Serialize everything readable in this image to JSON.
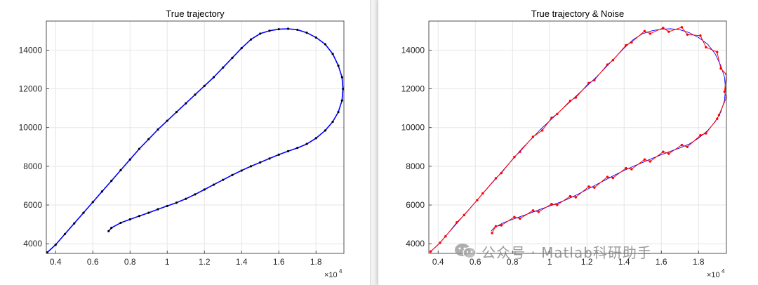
{
  "chart_data": [
    {
      "type": "line",
      "title": "True trajectory",
      "xlabel": "",
      "ylabel": "",
      "x_exponent_label": "×10",
      "x_exponent_power": "4",
      "xlim": [
        0.35,
        1.95
      ],
      "ylim": [
        3500,
        15500
      ],
      "xticks": [
        "0.4",
        "0.6",
        "0.8",
        "1",
        "1.2",
        "1.4",
        "1.6",
        "1.8"
      ],
      "yticks": [
        "4000",
        "6000",
        "8000",
        "10000",
        "12000",
        "14000"
      ],
      "grid": true,
      "colors": {
        "line": "#0000ff",
        "markers": "#000000"
      },
      "series": [
        {
          "style": "blue line with black dot markers",
          "points": [
            [
              0.355,
              3550
            ],
            [
              0.4,
              3950
            ],
            [
              0.45,
              4500
            ],
            [
              0.5,
              5050
            ],
            [
              0.55,
              5600
            ],
            [
              0.6,
              6150
            ],
            [
              0.65,
              6700
            ],
            [
              0.7,
              7250
            ],
            [
              0.75,
              7800
            ],
            [
              0.8,
              8350
            ],
            [
              0.85,
              8900
            ],
            [
              0.9,
              9400
            ],
            [
              0.95,
              9900
            ],
            [
              1.0,
              10350
            ],
            [
              1.05,
              10800
            ],
            [
              1.1,
              11250
            ],
            [
              1.15,
              11700
            ],
            [
              1.2,
              12150
            ],
            [
              1.25,
              12600
            ],
            [
              1.3,
              13100
            ],
            [
              1.35,
              13600
            ],
            [
              1.4,
              14100
            ],
            [
              1.45,
              14550
            ],
            [
              1.5,
              14850
            ],
            [
              1.55,
              15000
            ],
            [
              1.6,
              15080
            ],
            [
              1.65,
              15100
            ],
            [
              1.7,
              15050
            ],
            [
              1.75,
              14900
            ],
            [
              1.8,
              14650
            ],
            [
              1.85,
              14300
            ],
            [
              1.89,
              13800
            ],
            [
              1.92,
              13200
            ],
            [
              1.94,
              12600
            ],
            [
              1.945,
              12000
            ],
            [
              1.94,
              11400
            ],
            [
              1.92,
              10800
            ],
            [
              1.89,
              10300
            ],
            [
              1.85,
              9850
            ],
            [
              1.8,
              9450
            ],
            [
              1.75,
              9150
            ],
            [
              1.7,
              8950
            ],
            [
              1.65,
              8780
            ],
            [
              1.6,
              8600
            ],
            [
              1.55,
              8400
            ],
            [
              1.5,
              8200
            ],
            [
              1.45,
              8000
            ],
            [
              1.4,
              7780
            ],
            [
              1.35,
              7550
            ],
            [
              1.3,
              7300
            ],
            [
              1.25,
              7050
            ],
            [
              1.2,
              6800
            ],
            [
              1.15,
              6550
            ],
            [
              1.1,
              6320
            ],
            [
              1.05,
              6120
            ],
            [
              1.0,
              5950
            ],
            [
              0.95,
              5780
            ],
            [
              0.9,
              5600
            ],
            [
              0.85,
              5430
            ],
            [
              0.8,
              5260
            ],
            [
              0.75,
              5080
            ],
            [
              0.7,
              4820
            ],
            [
              0.685,
              4650
            ]
          ]
        }
      ]
    },
    {
      "type": "line",
      "title": "True trajectory & Noise",
      "xlabel": "",
      "ylabel": "",
      "x_exponent_label": "×10",
      "x_exponent_power": "4",
      "xlim": [
        0.35,
        1.95
      ],
      "ylim": [
        3500,
        15500
      ],
      "xticks": [
        "0.4",
        "0.6",
        "0.8",
        "1",
        "1.2",
        "1.4",
        "1.6",
        "1.8"
      ],
      "yticks": [
        "4000",
        "6000",
        "8000",
        "10000",
        "12000",
        "14000"
      ],
      "grid": true,
      "colors": {
        "true_line": "#0000ff",
        "noise": "#ff0000"
      },
      "series": [
        {
          "style": "blue thin line (true trajectory)",
          "points": [
            [
              0.355,
              3550
            ],
            [
              0.4,
              3950
            ],
            [
              0.45,
              4500
            ],
            [
              0.5,
              5050
            ],
            [
              0.55,
              5600
            ],
            [
              0.6,
              6150
            ],
            [
              0.65,
              6700
            ],
            [
              0.7,
              7250
            ],
            [
              0.75,
              7800
            ],
            [
              0.8,
              8350
            ],
            [
              0.85,
              8900
            ],
            [
              0.9,
              9400
            ],
            [
              0.95,
              9900
            ],
            [
              1.0,
              10350
            ],
            [
              1.05,
              10800
            ],
            [
              1.1,
              11250
            ],
            [
              1.15,
              11700
            ],
            [
              1.2,
              12150
            ],
            [
              1.25,
              12600
            ],
            [
              1.3,
              13100
            ],
            [
              1.35,
              13600
            ],
            [
              1.4,
              14100
            ],
            [
              1.45,
              14550
            ],
            [
              1.5,
              14850
            ],
            [
              1.55,
              15000
            ],
            [
              1.6,
              15080
            ],
            [
              1.65,
              15100
            ],
            [
              1.7,
              15050
            ],
            [
              1.75,
              14900
            ],
            [
              1.8,
              14650
            ],
            [
              1.85,
              14300
            ],
            [
              1.89,
              13800
            ],
            [
              1.92,
              13200
            ],
            [
              1.94,
              12600
            ],
            [
              1.945,
              12000
            ],
            [
              1.94,
              11400
            ],
            [
              1.92,
              10800
            ],
            [
              1.89,
              10300
            ],
            [
              1.85,
              9850
            ],
            [
              1.8,
              9450
            ],
            [
              1.75,
              9150
            ],
            [
              1.7,
              8950
            ],
            [
              1.65,
              8780
            ],
            [
              1.6,
              8600
            ],
            [
              1.55,
              8400
            ],
            [
              1.5,
              8200
            ],
            [
              1.45,
              8000
            ],
            [
              1.4,
              7780
            ],
            [
              1.35,
              7550
            ],
            [
              1.3,
              7300
            ],
            [
              1.25,
              7050
            ],
            [
              1.2,
              6800
            ],
            [
              1.15,
              6550
            ],
            [
              1.1,
              6320
            ],
            [
              1.05,
              6120
            ],
            [
              1.0,
              5950
            ],
            [
              0.95,
              5780
            ],
            [
              0.9,
              5600
            ],
            [
              0.85,
              5430
            ],
            [
              0.8,
              5260
            ],
            [
              0.75,
              5080
            ],
            [
              0.7,
              4820
            ],
            [
              0.685,
              4650
            ]
          ]
        },
        {
          "style": "red line with red dot markers (noisy measurements)",
          "points": [
            [
              0.36,
              3600
            ],
            [
              0.41,
              4050
            ],
            [
              0.44,
              4380
            ],
            [
              0.5,
              5100
            ],
            [
              0.54,
              5480
            ],
            [
              0.61,
              6250
            ],
            [
              0.64,
              6600
            ],
            [
              0.71,
              7380
            ],
            [
              0.74,
              7650
            ],
            [
              0.81,
              8480
            ],
            [
              0.84,
              8750
            ],
            [
              0.91,
              9520
            ],
            [
              0.96,
              9850
            ],
            [
              1.01,
              10500
            ],
            [
              1.04,
              10700
            ],
            [
              1.11,
              11380
            ],
            [
              1.14,
              11550
            ],
            [
              1.21,
              12300
            ],
            [
              1.24,
              12450
            ],
            [
              1.31,
              13250
            ],
            [
              1.34,
              13480
            ],
            [
              1.41,
              14250
            ],
            [
              1.44,
              14400
            ],
            [
              1.51,
              14980
            ],
            [
              1.54,
              14850
            ],
            [
              1.61,
              15150
            ],
            [
              1.64,
              14950
            ],
            [
              1.71,
              15180
            ],
            [
              1.74,
              14800
            ],
            [
              1.81,
              14750
            ],
            [
              1.84,
              14150
            ],
            [
              1.9,
              13900
            ],
            [
              1.92,
              13050
            ],
            [
              1.95,
              12750
            ],
            [
              1.94,
              11850
            ],
            [
              1.95,
              11550
            ],
            [
              1.91,
              10650
            ],
            [
              1.9,
              10450
            ],
            [
              1.84,
              9700
            ],
            [
              1.81,
              9600
            ],
            [
              1.74,
              9000
            ],
            [
              1.71,
              9100
            ],
            [
              1.64,
              8650
            ],
            [
              1.61,
              8750
            ],
            [
              1.54,
              8250
            ],
            [
              1.51,
              8350
            ],
            [
              1.44,
              7850
            ],
            [
              1.41,
              7900
            ],
            [
              1.34,
              7400
            ],
            [
              1.31,
              7450
            ],
            [
              1.24,
              6900
            ],
            [
              1.21,
              6950
            ],
            [
              1.14,
              6400
            ],
            [
              1.11,
              6450
            ],
            [
              1.04,
              6000
            ],
            [
              1.01,
              6050
            ],
            [
              0.94,
              5650
            ],
            [
              0.91,
              5720
            ],
            [
              0.84,
              5300
            ],
            [
              0.81,
              5380
            ],
            [
              0.74,
              4950
            ],
            [
              0.71,
              4900
            ],
            [
              0.69,
              4550
            ]
          ]
        }
      ]
    }
  ],
  "watermark": {
    "text": "公众号 · Matlab科研助手",
    "icon": "wechat-icon"
  }
}
